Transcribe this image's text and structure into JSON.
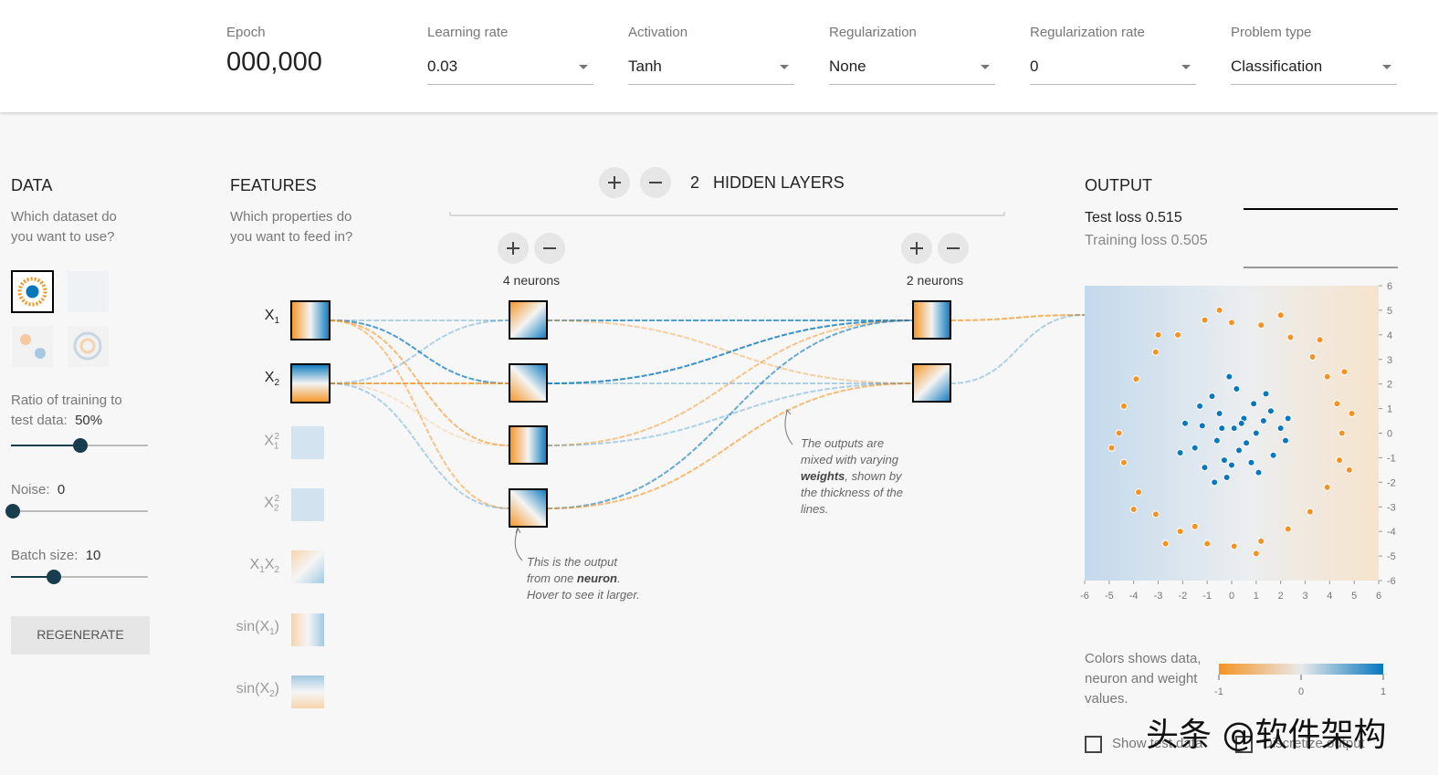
{
  "toolbar": {
    "epoch_label": "Epoch",
    "epoch": "000,000",
    "dropdowns": [
      {
        "label": "Learning rate",
        "value": "0.03"
      },
      {
        "label": "Activation",
        "value": "Tanh"
      },
      {
        "label": "Regularization",
        "value": "None"
      },
      {
        "label": "Regularization rate",
        "value": "0"
      },
      {
        "label": "Problem type",
        "value": "Classification"
      }
    ]
  },
  "data_panel": {
    "title": "DATA",
    "prompt": "Which dataset do you want to use?",
    "ratio_label": "Ratio of training to test data:",
    "ratio": "50%",
    "noise_label": "Noise:",
    "noise": "0",
    "batch_label": "Batch size:",
    "batch": "10",
    "button": "REGENERATE"
  },
  "features": {
    "title": "FEATURES",
    "prompt": "Which properties do you want to feed in?",
    "items": [
      [
        "X",
        "1"
      ],
      [
        "X",
        "2"
      ],
      [
        "X",
        "1",
        "2"
      ],
      [
        "X",
        "2",
        "2"
      ],
      [
        "X",
        "1",
        "X",
        "2"
      ],
      [
        "sin(X",
        "1",
        ")"
      ],
      [
        "sin(X",
        "2",
        ")"
      ]
    ]
  },
  "hidden_layers": {
    "count": "2",
    "title": "HIDDEN LAYERS",
    "layers": [
      "4 neurons",
      "2 neurons"
    ]
  },
  "annotations": [
    [
      "This is the output from one ",
      "neuron",
      ". Hover to see it larger."
    ],
    [
      "The outputs are mixed with varying ",
      "weights",
      ", shown by the thickness of the lines."
    ]
  ],
  "output": {
    "title": "OUTPUT",
    "test_loss": "Test loss 0.515",
    "training_loss": "Training loss 0.505",
    "plot": {
      "type": "scatter",
      "xlim": [
        -6,
        6
      ],
      "ylim": [
        -6,
        6
      ],
      "xticks": [
        -6,
        -5,
        -4,
        -3,
        -2,
        -1,
        0,
        1,
        2,
        3,
        4,
        5,
        6
      ],
      "yticks": [
        -6,
        -5,
        -4,
        -3,
        -2,
        -1,
        0,
        1,
        2,
        3,
        4,
        5,
        6
      ],
      "series": [
        {
          "color": "#0877bd",
          "x": [
            0.1,
            -0.5,
            0.6,
            -1.2,
            1.3,
            -0.3,
            0.9,
            -1.5,
            1.7,
            0.2,
            -0.8,
            1.1,
            -0.2,
            2.0,
            -1.9,
            0.5,
            -0.6,
            1.4,
            -1.1,
            0.3,
            -0.1,
            2.2,
            -2.1,
            0.8,
            -0.4,
            1.0,
            -1.3,
            0.0,
            1.6,
            -0.7,
            2.3,
            0.4
          ],
          "y": [
            0.2,
            0.8,
            -0.4,
            0.3,
            0.5,
            -1.1,
            1.2,
            -0.6,
            -0.9,
            1.8,
            1.5,
            -1.6,
            -1.8,
            0.2,
            0.4,
            0.6,
            -0.3,
            1.6,
            -1.4,
            -0.7,
            2.3,
            -0.3,
            -0.8,
            -1.2,
            0.2,
            0.0,
            1.1,
            -1.3,
            0.9,
            -2.0,
            0.6,
            0.4
          ]
        },
        {
          "color": "#f59322",
          "x": [
            4.5,
            4.3,
            3.9,
            3.3,
            2.4,
            1.2,
            0,
            -1.1,
            -2.2,
            -3.1,
            -3.9,
            -4.4,
            -4.6,
            -4.4,
            -3.8,
            -3.1,
            -2.1,
            -1.0,
            0.1,
            1.2,
            2.3,
            3.2,
            3.9,
            4.4,
            4.9,
            3.6,
            -0.5,
            -3.0,
            -4.9,
            -2.7,
            1.0,
            4.8,
            2.0,
            -4.0,
            4.6,
            -1.5
          ],
          "y": [
            0,
            1.2,
            2.3,
            3.1,
            3.9,
            4.4,
            4.5,
            4.6,
            4.0,
            3.3,
            2.2,
            1.1,
            0.0,
            -1.2,
            -2.4,
            -3.3,
            -4.0,
            -4.5,
            -4.6,
            -4.4,
            -3.9,
            -3.2,
            -2.2,
            -1.1,
            0.8,
            3.8,
            5.0,
            4.0,
            -0.6,
            -4.5,
            -4.9,
            -1.5,
            4.8,
            -3.1,
            2.5,
            -3.8
          ]
        }
      ]
    },
    "legend": "Colors shows data, neuron and weight values.",
    "colorbar": {
      "ticks": [
        -1,
        0,
        1
      ]
    },
    "checkboxes": [
      "Show test data",
      "Discretize output"
    ]
  },
  "watermark": "头条 @软件架构"
}
